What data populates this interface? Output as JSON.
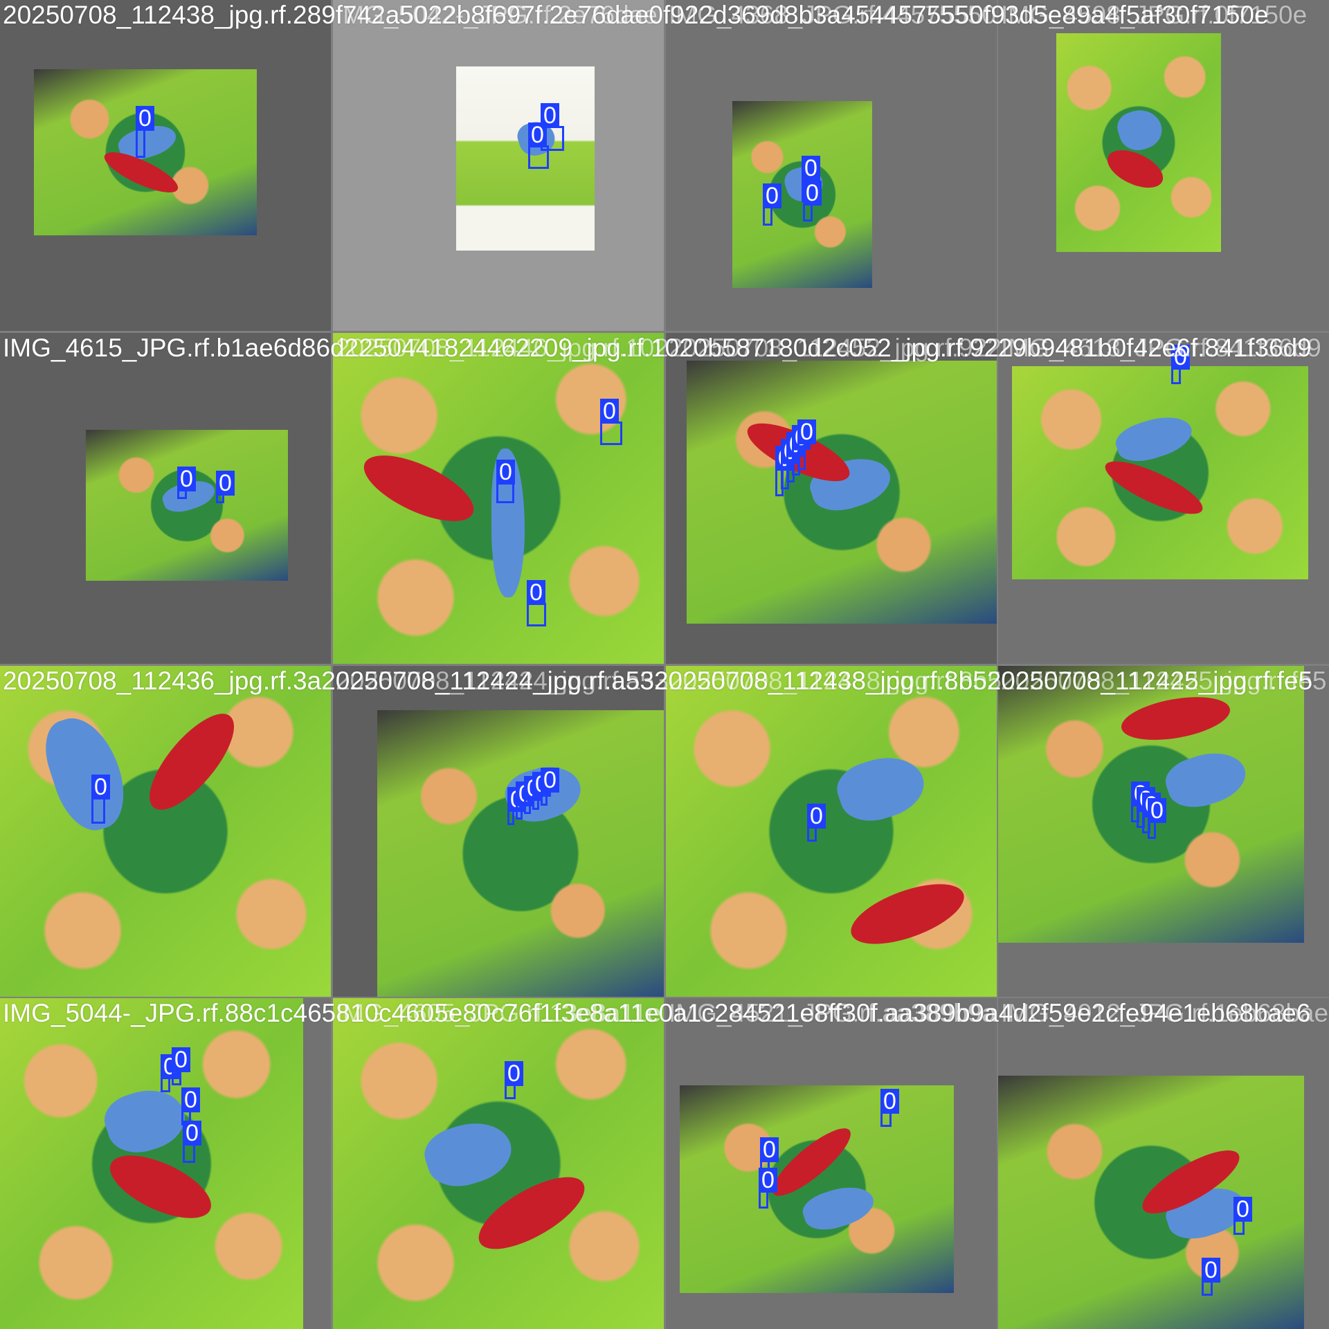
{
  "colors": {
    "box": "#1f3fff",
    "caption": "#ffffff"
  },
  "tiles": [
    {
      "caption": "20250708_112438_jpg.rf.289f742a5022b8f697f.2e76dae0f922d369d8b3a4544575550f93d5e89a4f5af30f7150e",
      "labels": [
        "0"
      ]
    },
    {
      "caption": "IMG_5042-_JPG.rf.2e76dae",
      "labels": [
        "0",
        "0"
      ]
    },
    {
      "caption": "IMG_4368_JPG.rf.44575550",
      "labels": [
        "0",
        "0",
        "0"
      ]
    },
    {
      "caption": "IMG_4598_JPG.rf.0f7150e",
      "labels": []
    },
    {
      "caption": "IMG_4615_JPG.rf.b1ae6d86d2250441824462209_jpg.rf.1020b587180d2c052_jpg.rf.9229b9481b0f42e6f.841f36d9",
      "labels": [
        "0",
        "0"
      ]
    },
    {
      "caption": "20250708_112446_jpg.rf.102",
      "labels": [
        "0",
        "0",
        "0"
      ]
    },
    {
      "caption": "20250708_112452_jpg.rf.922",
      "labels": [
        "0",
        "0",
        "0",
        "0",
        "0"
      ]
    },
    {
      "caption": "IMG_4613_JPG.rf.841f36d9",
      "labels": [
        "0"
      ]
    },
    {
      "caption": "20250708_112436_jpg.rf.3a20250708_112424_jpg.rf.a5320250708_112438_jpg.rf.8b520250708_112425_jpg.rf.fe5",
      "labels": [
        "0"
      ]
    },
    {
      "caption": "20250708_112424_jpg.rf.a53",
      "labels": [
        "0",
        "0",
        "0",
        "0",
        "0"
      ]
    },
    {
      "caption": "20250708_112438_jpg.rf.8b5",
      "labels": [
        "0"
      ]
    },
    {
      "caption": "20250708_112425_jpg.rf.fe5",
      "labels": [
        "0",
        "0",
        "0",
        "0"
      ]
    },
    {
      "caption": "IMG_5044-_JPG.rf.88c1c465810c4605e80c76f1f3e8a11e0a1c284521e8ff30f.aa389b9a4d2f59e2cfe94e1eb68bae6",
      "labels": [
        "0",
        "0",
        "0",
        "0"
      ]
    },
    {
      "caption": "IMG_4605_JPG.rf.13e8a11e",
      "labels": [
        "0"
      ]
    },
    {
      "caption": "IMG_4521_JPG.rf.aa389b9a",
      "labels": [
        "0",
        "0",
        "0"
      ]
    },
    {
      "caption": "IMG_4912_JPG.rf.1eb68bae6",
      "labels": [
        "0",
        "0"
      ]
    }
  ]
}
